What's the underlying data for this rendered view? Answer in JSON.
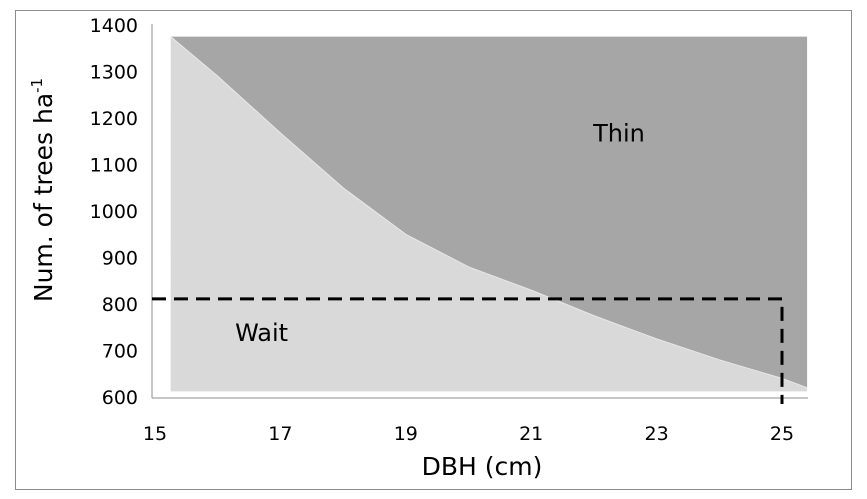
{
  "chart_data": {
    "type": "area",
    "title": "",
    "xlabel": "DBH (cm)",
    "ylabel_main": "Num. of trees ha",
    "ylabel_sup": "-1",
    "xlim": [
      15,
      25.4
    ],
    "ylim": [
      600,
      1400
    ],
    "xticks": [
      "15",
      "17",
      "19",
      "21",
      "23",
      "25"
    ],
    "yticks": [
      "600",
      "700",
      "800",
      "900",
      "1000",
      "1100",
      "1200",
      "1300",
      "1400"
    ],
    "grid": false,
    "boundary_curve": {
      "x": [
        15.25,
        16,
        17,
        18,
        19,
        20,
        21,
        22,
        23,
        24,
        25,
        25.4
      ],
      "y": [
        1375,
        1290,
        1168,
        1050,
        950,
        880,
        830,
        775,
        725,
        680,
        640,
        620
      ]
    },
    "region_top": 1375,
    "region_bottom": 612,
    "regions": [
      {
        "name": "Thin",
        "label": "Thin",
        "color": "#a6a6a6",
        "at": [
          22.4,
          1150
        ]
      },
      {
        "name": "Wait",
        "label": "Wait",
        "color": "#d9d9d9",
        "at": [
          16.7,
          720
        ]
      }
    ],
    "threshold": {
      "x": 25,
      "y": 811,
      "style": "dashed",
      "color": "#000000"
    }
  }
}
